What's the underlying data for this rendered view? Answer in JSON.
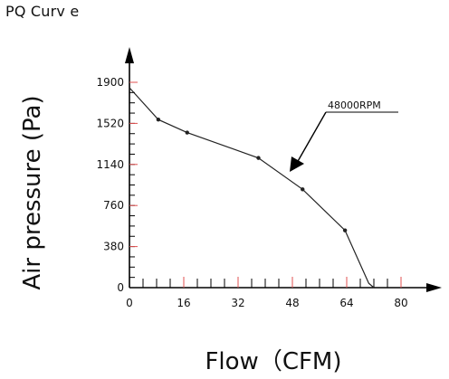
{
  "title": "PQ Curv e",
  "chart_data": {
    "type": "line",
    "xlabel": "Flow（CFM)",
    "ylabel": "Air pressure (Pa)",
    "xlim": [
      0,
      80
    ],
    "ylim": [
      0,
      1900
    ],
    "x_ticks": [
      0,
      16,
      32,
      48,
      64,
      80
    ],
    "x_tick_labels": [
      "0",
      "16",
      "32",
      "48",
      "64",
      "80"
    ],
    "y_ticks": [
      0,
      380,
      760,
      1140,
      1520,
      1900
    ],
    "y_tick_labels": [
      "0",
      "380",
      "760",
      "1140",
      "1520",
      "1900"
    ],
    "grid": false,
    "series": [
      {
        "name": "48000RPM",
        "x": [
          0,
          8.5,
          17,
          38,
          51,
          63.5,
          70.5,
          72
        ],
        "y": [
          1850,
          1555,
          1435,
          1200,
          910,
          530,
          40,
          0
        ]
      }
    ],
    "annotations": [
      {
        "text": "48000RPM",
        "points_to_series": "48000RPM"
      }
    ],
    "colors": {
      "line": "#222222",
      "axis": "#000000",
      "minor_tick": "#e05050"
    }
  }
}
